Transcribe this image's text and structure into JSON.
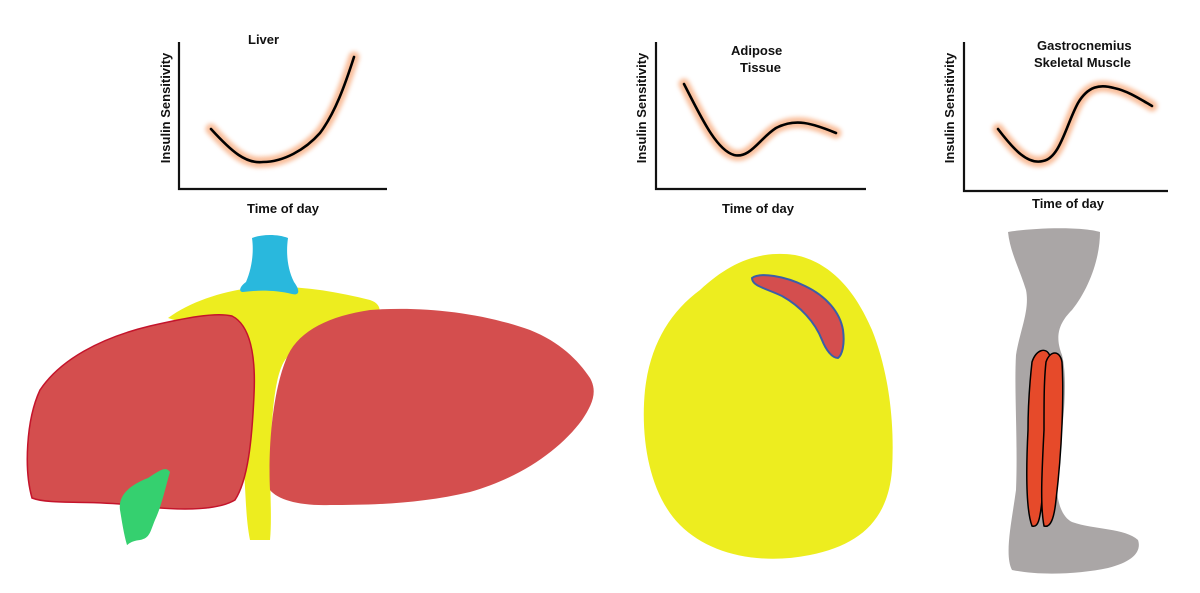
{
  "charts": [
    {
      "title_lines": [
        "Liver"
      ],
      "xlabel": "Time of day",
      "ylabel": "Insulin Sensitivity"
    },
    {
      "title_lines": [
        "Adipose",
        "Tissue"
      ],
      "xlabel": "Time of day",
      "ylabel": "Insulin Sensitivity"
    },
    {
      "title_lines": [
        "Gastrocnemius",
        "Skeletal Muscle"
      ],
      "xlabel": "Time of day",
      "ylabel": "Insulin Sensitivity"
    }
  ],
  "colors": {
    "liver": "#d44e4e",
    "liver_outline": "#c4142b",
    "yellow": "#eded1f",
    "cyan": "#29b8dd",
    "green": "#35d06f",
    "leg": "#aaa6a6",
    "muscle": "#e64a2a",
    "adipose_vessel_outline": "#3b5ea8",
    "glow": "#f7a97a"
  }
}
